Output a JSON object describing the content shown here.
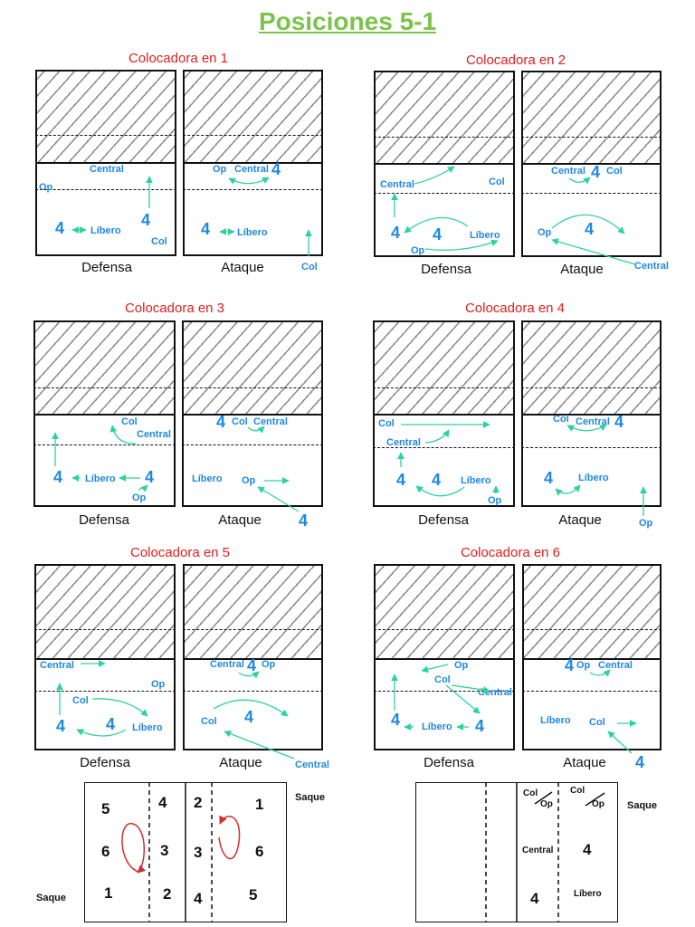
{
  "title": "Posiciones 5-1",
  "captions": {
    "defense": "Defensa",
    "attack": "Ataque"
  },
  "labels": {
    "central": "Central",
    "op": "Op",
    "col": "Col",
    "libero": "Líbero",
    "four": "4",
    "saque": "Saque"
  },
  "rotations": [
    {
      "title": "Colocadora en 1"
    },
    {
      "title": "Colocadora en 2"
    },
    {
      "title": "Colocadora en 3"
    },
    {
      "title": "Colocadora en 4"
    },
    {
      "title": "Colocadora en 5"
    },
    {
      "title": "Colocadora en 6"
    }
  ],
  "rotation_diagram": {
    "left_court": [
      "5",
      "6",
      "1"
    ],
    "left_front": [
      "4",
      "3",
      "2"
    ],
    "right_front": [
      "2",
      "3",
      "4"
    ],
    "right_back": [
      "1",
      "6",
      "5"
    ]
  },
  "colors": {
    "accent": "#7cc34b",
    "rotation_title": "#e0201e",
    "player": "#1e88e5",
    "arrow": "#2ed39a",
    "rotation_arrow": "#d32f2f"
  }
}
